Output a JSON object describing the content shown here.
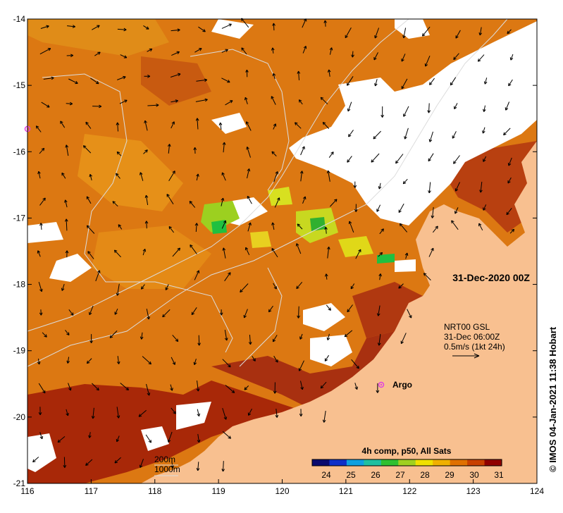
{
  "map": {
    "date_label": "31-Dec-2020 00Z",
    "current_label_line1": "NRT00 GSL",
    "current_label_line2": "31-Dec 06:00Z",
    "current_label_line3": "0.5m/s (1kt 24h)",
    "argo_label": "Argo",
    "contour_label_200": "200m",
    "contour_label_1000": "1000m",
    "colorbar_title": "4h comp, p50, All Sats",
    "credit": "© IMOS 04-Jan-2021 11:38 Hobart"
  },
  "axes": {
    "x_ticks": [
      "116",
      "117",
      "118",
      "119",
      "120",
      "121",
      "122",
      "123",
      "124"
    ],
    "y_ticks": [
      "-14",
      "-15",
      "-16",
      "-17",
      "-18",
      "-19",
      "-20",
      "-21"
    ]
  },
  "colorbar": {
    "ticks": [
      "24",
      "25",
      "26",
      "27",
      "28",
      "29",
      "30",
      "31"
    ],
    "colors": [
      "#0a0a6e",
      "#1030c8",
      "#10a0e0",
      "#20c0a0",
      "#30c030",
      "#a0d020",
      "#f0e000",
      "#f0b000",
      "#e07000",
      "#c84000",
      "#900000"
    ]
  },
  "colors": {
    "land": "#f8c090",
    "sst_warm": "#d86a10",
    "sst_hot": "#a82808",
    "sst_mid": "#e89018",
    "cloud": "#ffffff",
    "contour": "#d0d0d0",
    "argo": "#e040e0"
  }
}
